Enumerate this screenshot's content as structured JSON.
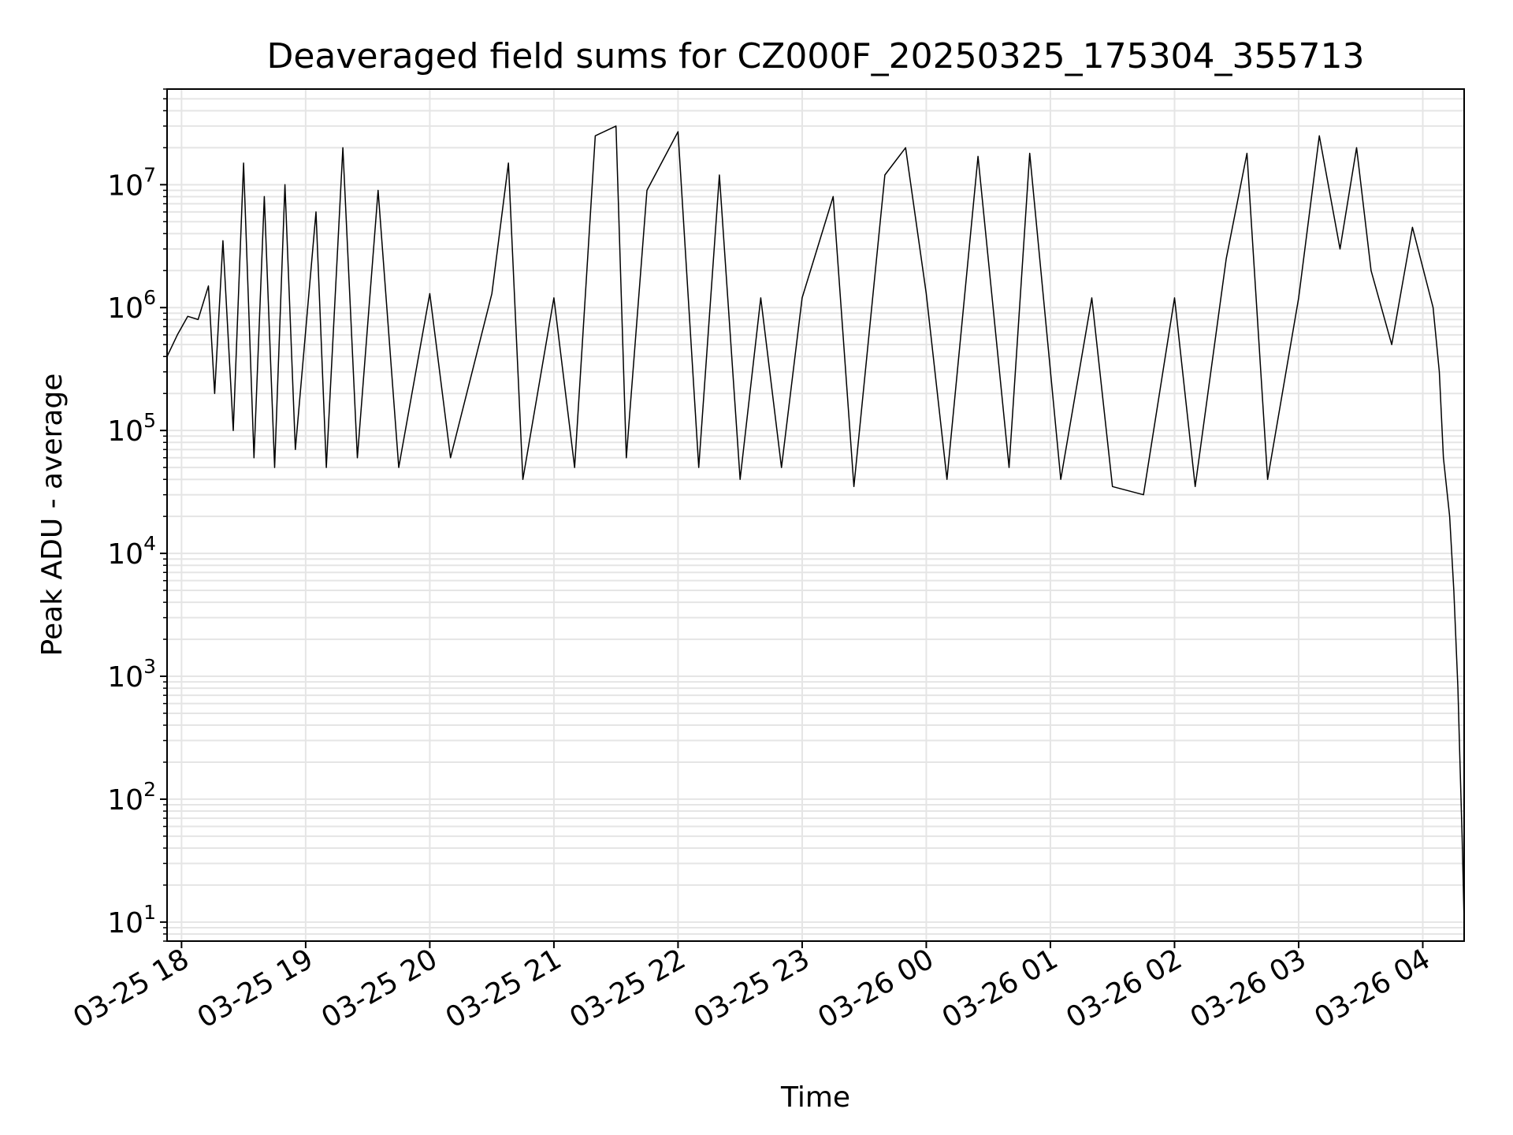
{
  "chart_data": {
    "type": "line",
    "title": "Deaveraged field sums for CZ000F_20250325_175304_355713",
    "xlabel": "Time",
    "ylabel": "Peak ADU - average",
    "yscale": "log",
    "ylim": [
      7,
      60000000
    ],
    "xlim": [
      "2025-03-25 17:53",
      "2025-03-26 04:20"
    ],
    "grid": true,
    "line_color": "#000000",
    "grid_color": "#e5e5e5",
    "x_ticks": [
      "03-25 18",
      "03-25 19",
      "03-25 20",
      "03-25 21",
      "03-25 22",
      "03-25 23",
      "03-26 00",
      "03-26 01",
      "03-26 02",
      "03-26 03",
      "03-26 04"
    ],
    "y_ticks": [
      {
        "value": 10,
        "base": "10",
        "exp": "1"
      },
      {
        "value": 100,
        "base": "10",
        "exp": "2"
      },
      {
        "value": 1000,
        "base": "10",
        "exp": "3"
      },
      {
        "value": 10000,
        "base": "10",
        "exp": "4"
      },
      {
        "value": 100000,
        "base": "10",
        "exp": "5"
      },
      {
        "value": 1000000,
        "base": "10",
        "exp": "6"
      },
      {
        "value": 10000000,
        "base": "10",
        "exp": "7"
      }
    ],
    "series": [
      {
        "points": [
          [
            "2025-03-25 17:53",
            400000
          ],
          [
            "2025-03-25 17:58",
            600000
          ],
          [
            "2025-03-25 18:03",
            850000
          ],
          [
            "2025-03-25 18:08",
            800000
          ],
          [
            "2025-03-25 18:13",
            1500000
          ],
          [
            "2025-03-25 18:16",
            200000
          ],
          [
            "2025-03-25 18:20",
            3500000
          ],
          [
            "2025-03-25 18:25",
            100000
          ],
          [
            "2025-03-25 18:30",
            15000000
          ],
          [
            "2025-03-25 18:35",
            60000
          ],
          [
            "2025-03-25 18:40",
            8000000
          ],
          [
            "2025-03-25 18:45",
            50000
          ],
          [
            "2025-03-25 18:50",
            10000000
          ],
          [
            "2025-03-25 18:55",
            70000
          ],
          [
            "2025-03-25 19:05",
            6000000
          ],
          [
            "2025-03-25 19:10",
            50000
          ],
          [
            "2025-03-25 19:18",
            20000000
          ],
          [
            "2025-03-25 19:25",
            60000
          ],
          [
            "2025-03-25 19:35",
            9000000
          ],
          [
            "2025-03-25 19:45",
            50000
          ],
          [
            "2025-03-25 20:00",
            1300000
          ],
          [
            "2025-03-25 20:10",
            60000
          ],
          [
            "2025-03-25 20:30",
            1300000
          ],
          [
            "2025-03-25 20:38",
            15000000
          ],
          [
            "2025-03-25 20:45",
            40000
          ],
          [
            "2025-03-25 21:00",
            1200000
          ],
          [
            "2025-03-25 21:10",
            50000
          ],
          [
            "2025-03-25 21:20",
            25000000
          ],
          [
            "2025-03-25 21:30",
            30000000
          ],
          [
            "2025-03-25 21:35",
            60000
          ],
          [
            "2025-03-25 21:45",
            9000000
          ],
          [
            "2025-03-25 22:00",
            27000000
          ],
          [
            "2025-03-25 22:10",
            50000
          ],
          [
            "2025-03-25 22:20",
            12000000
          ],
          [
            "2025-03-25 22:30",
            40000
          ],
          [
            "2025-03-25 22:40",
            1200000
          ],
          [
            "2025-03-25 22:50",
            50000
          ],
          [
            "2025-03-25 23:00",
            1200000
          ],
          [
            "2025-03-25 23:15",
            8000000
          ],
          [
            "2025-03-25 23:25",
            35000
          ],
          [
            "2025-03-25 23:40",
            12000000
          ],
          [
            "2025-03-25 23:50",
            20000000
          ],
          [
            "2025-03-26 00:00",
            1300000
          ],
          [
            "2025-03-26 00:10",
            40000
          ],
          [
            "2025-03-26 00:25",
            17000000
          ],
          [
            "2025-03-26 00:40",
            50000
          ],
          [
            "2025-03-26 00:50",
            18000000
          ],
          [
            "2025-03-26 01:05",
            40000
          ],
          [
            "2025-03-26 01:20",
            1200000
          ],
          [
            "2025-03-26 01:30",
            35000
          ],
          [
            "2025-03-26 01:45",
            30000
          ],
          [
            "2025-03-26 02:00",
            1200000
          ],
          [
            "2025-03-26 02:10",
            35000
          ],
          [
            "2025-03-26 02:25",
            2500000
          ],
          [
            "2025-03-26 02:35",
            18000000
          ],
          [
            "2025-03-26 02:45",
            40000
          ],
          [
            "2025-03-26 03:00",
            1200000
          ],
          [
            "2025-03-26 03:10",
            25000000
          ],
          [
            "2025-03-26 03:20",
            3000000
          ],
          [
            "2025-03-26 03:28",
            20000000
          ],
          [
            "2025-03-26 03:35",
            2000000
          ],
          [
            "2025-03-26 03:45",
            500000
          ],
          [
            "2025-03-26 03:55",
            4500000
          ],
          [
            "2025-03-26 04:05",
            1000000
          ],
          [
            "2025-03-26 04:08",
            300000
          ],
          [
            "2025-03-26 04:10",
            60000
          ],
          [
            "2025-03-26 04:13",
            20000
          ],
          [
            "2025-03-26 04:15",
            5000
          ],
          [
            "2025-03-26 04:17",
            800
          ],
          [
            "2025-03-26 04:18",
            200
          ],
          [
            "2025-03-26 04:19",
            50
          ],
          [
            "2025-03-26 04:20",
            10
          ]
        ]
      }
    ]
  }
}
